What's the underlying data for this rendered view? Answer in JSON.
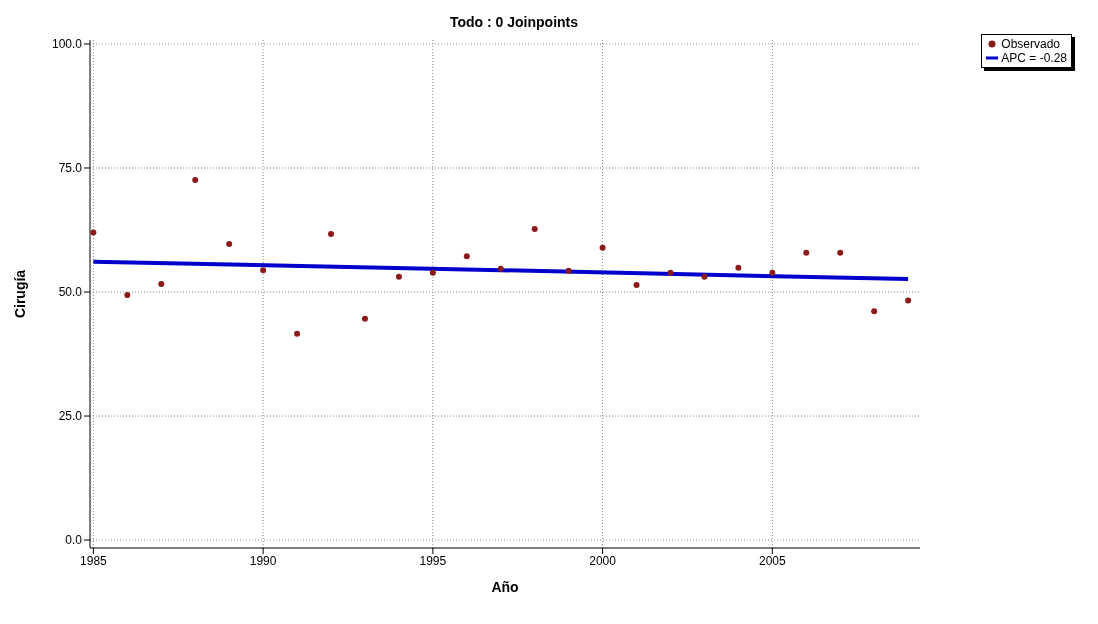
{
  "chart_data": {
    "type": "scatter",
    "title": "Todo : 0 Joinpoints",
    "xlabel": "Año",
    "ylabel": "Cirugía",
    "xlim": [
      1984.9,
      2009.35
    ],
    "xticks": [
      1985,
      1990,
      1995,
      2000,
      2005
    ],
    "ylim": [
      -1.6,
      100.8
    ],
    "yticks": [
      {
        "value": 0,
        "label": "0.0"
      },
      {
        "value": 25,
        "label": "25.0"
      },
      {
        "value": 50,
        "label": "50.0"
      },
      {
        "value": 75,
        "label": "75.0"
      },
      {
        "value": 100,
        "label": "100.0"
      }
    ],
    "grid": true,
    "legend": "top right",
    "series": [
      {
        "name": "Observado",
        "marker": "circle",
        "color": "#8b1a1a",
        "x": [
          1985,
          1986,
          1987,
          1988,
          1989,
          1990,
          1991,
          1992,
          1993,
          1994,
          1995,
          1996,
          1997,
          1998,
          1999,
          2000,
          2001,
          2002,
          2003,
          2004,
          2005,
          2006,
          2007,
          2008,
          2009
        ],
        "values": [
          62.0,
          49.4,
          51.6,
          72.6,
          59.7,
          54.4,
          41.6,
          61.7,
          44.6,
          53.1,
          53.9,
          57.2,
          54.7,
          62.7,
          54.3,
          58.9,
          51.4,
          53.9,
          53.1,
          54.9,
          53.9,
          57.9,
          57.9,
          46.1,
          48.3
        ]
      },
      {
        "name": "APC = -0.28",
        "type": "line",
        "marker": "none",
        "color": "#0000cc",
        "x": [
          1985,
          1997,
          2009
        ],
        "values": [
          56.1,
          54.4,
          52.6
        ]
      }
    ]
  }
}
